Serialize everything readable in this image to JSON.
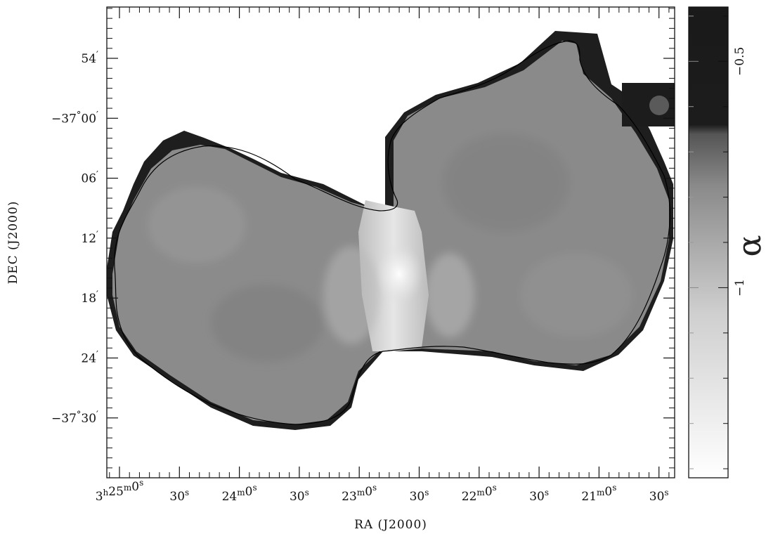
{
  "chart_data": {
    "type": "heatmap",
    "title": "",
    "xlabel": "RA (J2000)",
    "ylabel": "DEC (J2000)",
    "x_ticks": [
      {
        "h": "3",
        "m": "25",
        "s": "0"
      },
      {
        "s": "30"
      },
      {
        "m": "24",
        "s": "0"
      },
      {
        "s": "30"
      },
      {
        "m": "23",
        "s": "0"
      },
      {
        "s": "30"
      },
      {
        "m": "22",
        "s": "0"
      },
      {
        "s": "30"
      },
      {
        "m": "21",
        "s": "0"
      },
      {
        "s": "30"
      }
    ],
    "y_ticks": [
      {
        "deg": "",
        "min": "54"
      },
      {
        "deg": "−37",
        "min": "00"
      },
      {
        "deg": "",
        "min": "06"
      },
      {
        "deg": "",
        "min": "12"
      },
      {
        "deg": "",
        "min": "18"
      },
      {
        "deg": "",
        "min": "24"
      },
      {
        "deg": "−37",
        "min": "30"
      }
    ],
    "colorbar": {
      "label": "α",
      "ticks": [
        "−0.5",
        "−1"
      ],
      "tick_values": [
        -0.5,
        -1.0
      ],
      "range": [
        -1.42,
        -0.38
      ],
      "colormap": "grayscale, white = steep (low α), black = flat (high α)"
    },
    "grid": false
  }
}
